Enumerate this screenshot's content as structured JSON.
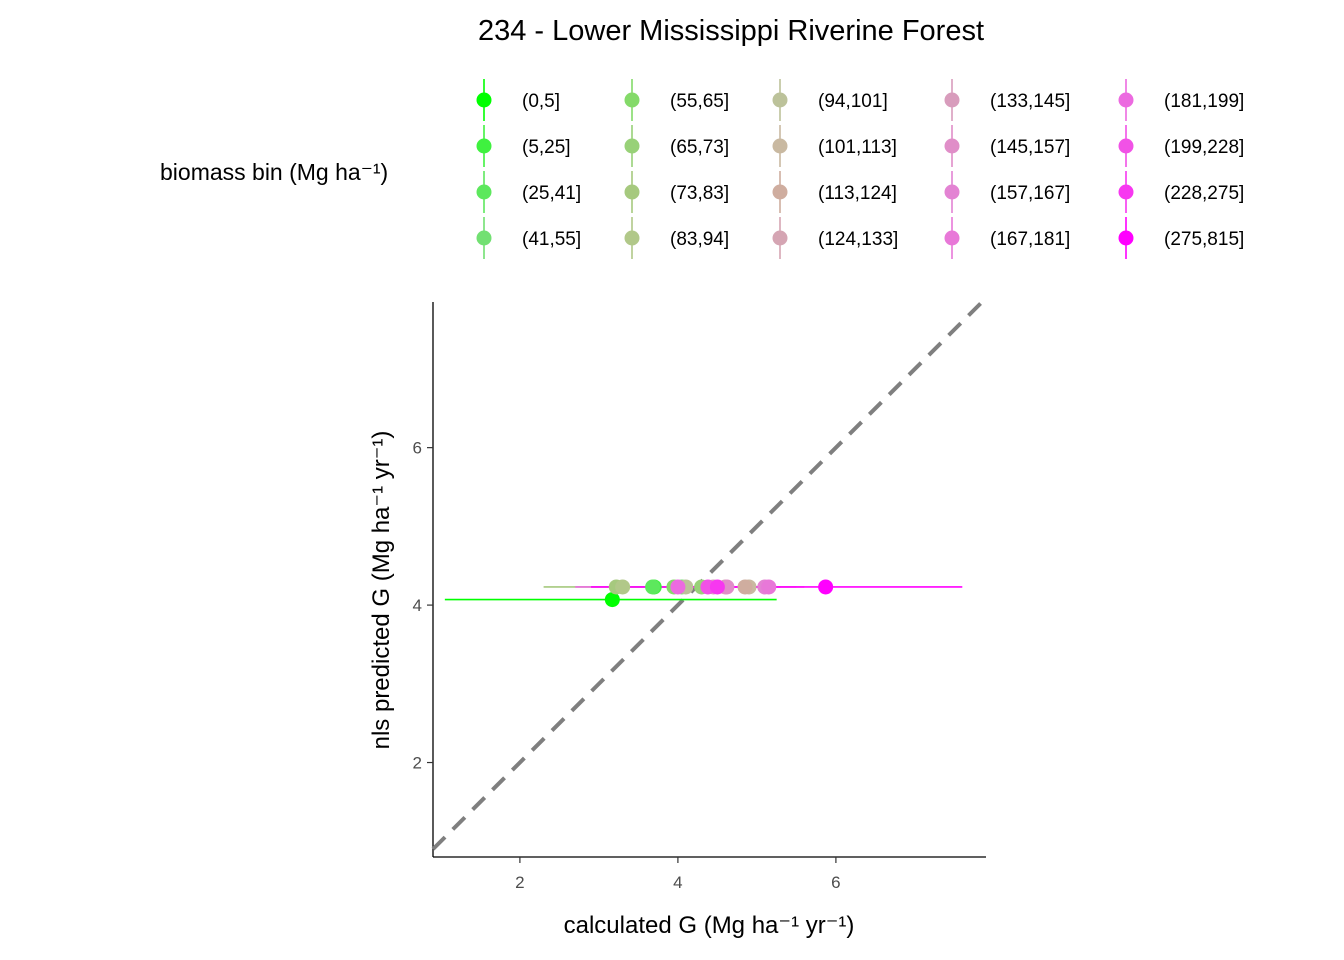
{
  "chart_data": {
    "type": "scatter",
    "title": "234 - Lower Mississippi Riverine Forest",
    "xlabel": "calculated G (Mg ha⁻¹ yr⁻¹)",
    "ylabel": "nls predicted G (Mg ha⁻¹ yr⁻¹)",
    "xlim": [
      0.9,
      7.9
    ],
    "ylim": [
      0.8,
      7.85
    ],
    "xticks": [
      2,
      4,
      6
    ],
    "yticks": [
      2,
      4,
      6
    ],
    "grid": false,
    "reference_line": {
      "slope": 1,
      "intercept": 0,
      "style": "dashed",
      "color": "#7f7f7f"
    },
    "legend": {
      "title": "biomass bin (Mg ha⁻¹)",
      "placement": "top",
      "columns": 5
    },
    "series": [
      {
        "name": "(0,5]",
        "color": "#00ff00",
        "x": 3.17,
        "y": 4.07,
        "xmin": 1.05,
        "xmax": 5.25
      },
      {
        "name": "(5,25]",
        "color": "#3ff13f",
        "x": 3.7,
        "y": 4.23,
        "xmin": 3.3,
        "xmax": 4.1
      },
      {
        "name": "(25,41]",
        "color": "#5de85d",
        "x": 3.68,
        "y": 4.23,
        "xmin": 3.3,
        "xmax": 4.1
      },
      {
        "name": "(41,55]",
        "color": "#72e072",
        "x": 4.05,
        "y": 4.23,
        "xmin": 3.6,
        "xmax": 4.5
      },
      {
        "name": "(55,65]",
        "color": "#84da69",
        "x": 3.95,
        "y": 4.23,
        "xmin": 3.5,
        "xmax": 4.4
      },
      {
        "name": "(65,73]",
        "color": "#98d178",
        "x": 4.3,
        "y": 4.23,
        "xmin": 3.9,
        "xmax": 4.7
      },
      {
        "name": "(73,83]",
        "color": "#a6c97e",
        "x": 3.22,
        "y": 4.23,
        "xmin": 2.3,
        "xmax": 4.1
      },
      {
        "name": "(83,94]",
        "color": "#b1c889",
        "x": 3.3,
        "y": 4.23,
        "xmin": 2.9,
        "xmax": 3.7
      },
      {
        "name": "(94,101]",
        "color": "#bcc29a",
        "x": 4.1,
        "y": 4.23,
        "xmin": 3.7,
        "xmax": 4.5
      },
      {
        "name": "(101,113]",
        "color": "#c9b9a1",
        "x": 4.9,
        "y": 4.23,
        "xmin": 4.5,
        "xmax": 5.3
      },
      {
        "name": "(113,124]",
        "color": "#cfad9f",
        "x": 4.85,
        "y": 4.23,
        "xmin": 4.4,
        "xmax": 5.3
      },
      {
        "name": "(124,133]",
        "color": "#d5a5b3",
        "x": 4.6,
        "y": 4.23,
        "xmin": 4.2,
        "xmax": 5.0
      },
      {
        "name": "(133,145]",
        "color": "#d89cbc",
        "x": 4.45,
        "y": 4.23,
        "xmin": 4.0,
        "xmax": 4.9
      },
      {
        "name": "(145,157]",
        "color": "#e08ec8",
        "x": 4.62,
        "y": 4.23,
        "xmin": 4.2,
        "xmax": 5.0
      },
      {
        "name": "(157,167]",
        "color": "#e383d3",
        "x": 5.1,
        "y": 4.23,
        "xmin": 4.7,
        "xmax": 5.5
      },
      {
        "name": "(167,181]",
        "color": "#e878d8",
        "x": 5.15,
        "y": 4.23,
        "xmin": 4.7,
        "xmax": 5.6
      },
      {
        "name": "(181,199]",
        "color": "#ec6ae0",
        "x": 4.0,
        "y": 4.23,
        "xmin": 2.7,
        "xmax": 5.3
      },
      {
        "name": "(199,228]",
        "color": "#f152e6",
        "x": 4.38,
        "y": 4.23,
        "xmin": 3.9,
        "xmax": 4.8
      },
      {
        "name": "(228,275]",
        "color": "#f737f0",
        "x": 4.5,
        "y": 4.23,
        "xmin": 4.0,
        "xmax": 5.0
      },
      {
        "name": "(275,815]",
        "color": "#ff00ff",
        "x": 5.87,
        "y": 4.23,
        "xmin": 2.9,
        "xmax": 7.6
      }
    ]
  }
}
